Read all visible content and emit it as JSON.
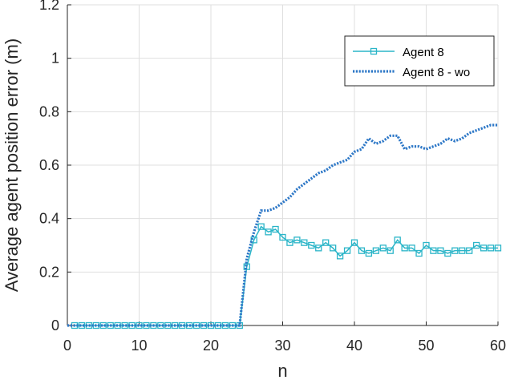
{
  "chart_data": {
    "type": "line",
    "xlabel": "n",
    "ylabel": "Average agent position error (m)",
    "xlim": [
      0,
      60
    ],
    "ylim": [
      0,
      1.2
    ],
    "xticks": [
      0,
      10,
      20,
      30,
      40,
      50,
      60
    ],
    "xtick_labels": [
      "0",
      "10",
      "20",
      "30",
      "40",
      "50",
      "60"
    ],
    "yticks": [
      0,
      0.2,
      0.4,
      0.6,
      0.8,
      1.0,
      1.2
    ],
    "ytick_labels": [
      "0",
      "0.2",
      "0.4",
      "0.6",
      "0.8",
      "1",
      "1.2"
    ],
    "grid": true,
    "legend_position": "top-right",
    "colors": {
      "agent8": "#2bb5c8",
      "agent8_wo": "#2e78c7"
    },
    "series": [
      {
        "name": "Agent 8",
        "style": "solid-with-square-markers",
        "color": "#2bb5c8",
        "x": [
          1,
          2,
          3,
          4,
          5,
          6,
          7,
          8,
          9,
          10,
          11,
          12,
          13,
          14,
          15,
          16,
          17,
          18,
          19,
          20,
          21,
          22,
          23,
          24,
          25,
          26,
          27,
          28,
          29,
          30,
          31,
          32,
          33,
          34,
          35,
          36,
          37,
          38,
          39,
          40,
          41,
          42,
          43,
          44,
          45,
          46,
          47,
          48,
          49,
          50,
          51,
          52,
          53,
          54,
          55,
          56,
          57,
          58,
          59,
          60
        ],
        "y": [
          0,
          0,
          0,
          0,
          0,
          0,
          0,
          0,
          0,
          0,
          0,
          0,
          0,
          0,
          0,
          0,
          0,
          0,
          0,
          0,
          0,
          0,
          0,
          0,
          0.22,
          0.32,
          0.37,
          0.35,
          0.36,
          0.33,
          0.31,
          0.32,
          0.31,
          0.3,
          0.29,
          0.31,
          0.29,
          0.26,
          0.28,
          0.31,
          0.28,
          0.27,
          0.28,
          0.29,
          0.28,
          0.32,
          0.29,
          0.29,
          0.27,
          0.3,
          0.28,
          0.28,
          0.27,
          0.28,
          0.28,
          0.28,
          0.3,
          0.29,
          0.29,
          0.29
        ]
      },
      {
        "name": "Agent 8 - wo",
        "style": "dotted",
        "color": "#2e78c7",
        "x": [
          0,
          1,
          2,
          3,
          4,
          5,
          6,
          7,
          8,
          9,
          10,
          11,
          12,
          13,
          14,
          15,
          16,
          17,
          18,
          19,
          20,
          21,
          22,
          23,
          24,
          25,
          26,
          27,
          28,
          29,
          30,
          31,
          32,
          33,
          34,
          35,
          36,
          37,
          38,
          39,
          40,
          41,
          42,
          43,
          44,
          45,
          46,
          47,
          48,
          49,
          50,
          51,
          52,
          53,
          54,
          55,
          56,
          57,
          58,
          59,
          60
        ],
        "y": [
          0,
          0,
          0,
          0,
          0,
          0,
          0,
          0,
          0,
          0,
          0,
          0,
          0,
          0,
          0,
          0,
          0,
          0,
          0,
          0,
          0,
          0,
          0,
          0,
          0,
          0.25,
          0.35,
          0.43,
          0.43,
          0.44,
          0.46,
          0.48,
          0.51,
          0.53,
          0.55,
          0.57,
          0.58,
          0.6,
          0.61,
          0.62,
          0.65,
          0.66,
          0.7,
          0.68,
          0.69,
          0.71,
          0.71,
          0.66,
          0.67,
          0.67,
          0.66,
          0.67,
          0.68,
          0.7,
          0.69,
          0.7,
          0.72,
          0.73,
          0.74,
          0.75,
          0.75
        ]
      }
    ]
  }
}
